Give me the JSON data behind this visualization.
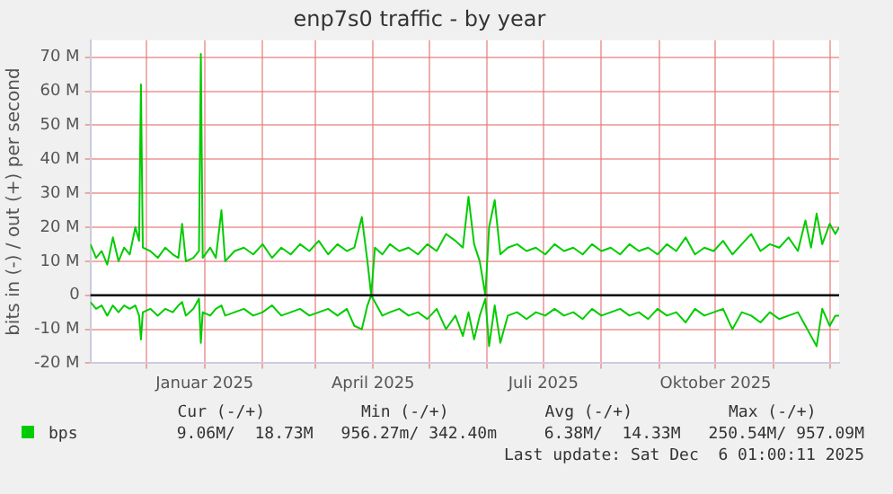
{
  "chart_data": {
    "type": "line",
    "title": "enp7s0 traffic - by year",
    "ylabel": "bits in (-) / out (+) per second",
    "x": [
      "2024-11-01",
      "2024-11-04",
      "2024-11-07",
      "2024-11-10",
      "2024-11-13",
      "2024-11-16",
      "2024-11-19",
      "2024-11-22",
      "2024-11-25",
      "2024-11-27",
      "2024-11-28",
      "2024-11-29",
      "2024-12-03",
      "2024-12-07",
      "2024-12-11",
      "2024-12-15",
      "2024-12-18",
      "2024-12-20",
      "2024-12-22",
      "2024-12-26",
      "2024-12-29",
      "2024-12-30",
      "2024-12-31",
      "2025-01-04",
      "2025-01-07",
      "2025-01-10",
      "2025-01-12",
      "2025-01-17",
      "2025-01-22",
      "2025-01-27",
      "2025-02-01",
      "2025-02-06",
      "2025-02-11",
      "2025-02-16",
      "2025-02-21",
      "2025-02-26",
      "2025-03-03",
      "2025-03-08",
      "2025-03-13",
      "2025-03-18",
      "2025-03-22",
      "2025-03-26",
      "2025-03-29",
      "2025-03-31",
      "2025-04-02",
      "2025-04-06",
      "2025-04-10",
      "2025-04-15",
      "2025-04-20",
      "2025-04-25",
      "2025-04-30",
      "2025-05-05",
      "2025-05-10",
      "2025-05-15",
      "2025-05-19",
      "2025-05-22",
      "2025-05-25",
      "2025-05-28",
      "2025-05-31",
      "2025-06-02",
      "2025-06-05",
      "2025-06-08",
      "2025-06-12",
      "2025-06-17",
      "2025-06-22",
      "2025-06-27",
      "2025-07-02",
      "2025-07-07",
      "2025-07-12",
      "2025-07-17",
      "2025-07-22",
      "2025-07-27",
      "2025-08-01",
      "2025-08-06",
      "2025-08-11",
      "2025-08-16",
      "2025-08-21",
      "2025-08-26",
      "2025-08-31",
      "2025-09-05",
      "2025-09-10",
      "2025-09-15",
      "2025-09-20",
      "2025-09-25",
      "2025-09-30",
      "2025-10-05",
      "2025-10-10",
      "2025-10-15",
      "2025-10-20",
      "2025-10-25",
      "2025-10-30",
      "2025-11-04",
      "2025-11-09",
      "2025-11-14",
      "2025-11-18",
      "2025-11-21",
      "2025-11-24",
      "2025-11-27",
      "2025-12-01",
      "2025-12-04",
      "2025-12-06"
    ],
    "series": [
      {
        "name": "bps",
        "color": "#00cc00",
        "values": [
          15,
          11,
          13,
          9,
          17,
          10,
          14,
          12,
          20,
          16,
          62,
          14,
          13,
          11,
          14,
          12,
          11,
          21,
          10,
          11,
          13,
          71,
          11,
          14,
          11,
          25,
          10,
          13,
          14,
          12,
          15,
          11,
          14,
          12,
          15,
          13,
          16,
          12,
          15,
          13,
          14,
          23,
          10,
          0,
          14,
          12,
          15,
          13,
          14,
          12,
          15,
          13,
          18,
          16,
          14,
          29,
          15,
          10,
          0,
          20,
          28,
          12,
          14,
          15,
          13,
          14,
          12,
          15,
          13,
          14,
          12,
          15,
          13,
          14,
          12,
          15,
          13,
          14,
          12,
          15,
          13,
          17,
          12,
          14,
          13,
          16,
          12,
          15,
          18,
          13,
          15,
          14,
          17,
          13,
          22,
          14,
          24,
          15,
          21,
          18,
          20
        ]
      },
      {
        "color": "#00cc00",
        "values": [
          -2,
          -4,
          -3,
          -6,
          -3,
          -5,
          -3,
          -4,
          -3,
          -6,
          -13,
          -5,
          -4,
          -6,
          -4,
          -5,
          -3,
          -2,
          -6,
          -4,
          -1,
          -14,
          -5,
          -6,
          -4,
          -3,
          -6,
          -5,
          -4,
          -6,
          -5,
          -3,
          -6,
          -5,
          -4,
          -6,
          -5,
          -4,
          -6,
          -4,
          -9,
          -10,
          -3,
          0,
          -2,
          -6,
          -5,
          -4,
          -6,
          -5,
          -7,
          -4,
          -10,
          -6,
          -12,
          -5,
          -13,
          -6,
          -1,
          -15,
          -3,
          -14,
          -6,
          -5,
          -7,
          -5,
          -6,
          -4,
          -6,
          -5,
          -7,
          -4,
          -6,
          -5,
          -4,
          -6,
          -5,
          -7,
          -4,
          -6,
          -5,
          -8,
          -4,
          -6,
          -5,
          -4,
          -10,
          -5,
          -6,
          -8,
          -5,
          -7,
          -6,
          -5,
          -9,
          -12,
          -15,
          -4,
          -9,
          -6,
          -6
        ]
      }
    ],
    "xlim": [
      "2024-11-01",
      "2025-12-06"
    ],
    "xticks": [
      {
        "value": "2024-12-01",
        "label": null
      },
      {
        "value": "2025-01-01",
        "label": "Januar 2025"
      },
      {
        "value": "2025-02-01",
        "label": null
      },
      {
        "value": "2025-03-01",
        "label": null
      },
      {
        "value": "2025-04-01",
        "label": "April 2025"
      },
      {
        "value": "2025-05-01",
        "label": null
      },
      {
        "value": "2025-06-01",
        "label": null
      },
      {
        "value": "2025-07-01",
        "label": "Juli 2025"
      },
      {
        "value": "2025-08-01",
        "label": null
      },
      {
        "value": "2025-09-01",
        "label": null
      },
      {
        "value": "2025-10-01",
        "label": "Oktober 2025"
      },
      {
        "value": "2025-11-01",
        "label": null
      },
      {
        "value": "2025-12-01",
        "label": null
      }
    ],
    "ylim": [
      -20,
      75
    ],
    "yticks": [
      {
        "value": -20,
        "label": "-20 M"
      },
      {
        "value": -10,
        "label": "-10 M"
      },
      0,
      {
        "value": 10,
        "label": "10 M"
      },
      {
        "value": 20,
        "label": "20 M"
      },
      {
        "value": 30,
        "label": "30 M"
      },
      {
        "value": 40,
        "label": "40 M"
      },
      {
        "value": 50,
        "label": "50 M"
      },
      {
        "value": 60,
        "label": "60 M"
      },
      {
        "value": 70,
        "label": "70 M"
      }
    ],
    "ref_lines": [
      {
        "axis": "y",
        "value": 0,
        "color": "#000000"
      }
    ],
    "grid": true,
    "legend": "bottom",
    "annotations": [
      "Cur (-/+)",
      "Min (-/+)",
      "Avg (-/+)",
      "Max (-/+)",
      "9.06M/  18.73M",
      "956.27m/ 342.40m",
      "6.38M/  14.33M",
      "250.54M/ 957.09M",
      "Last update: Sat Dec  6 01:00:11 2025"
    ]
  }
}
